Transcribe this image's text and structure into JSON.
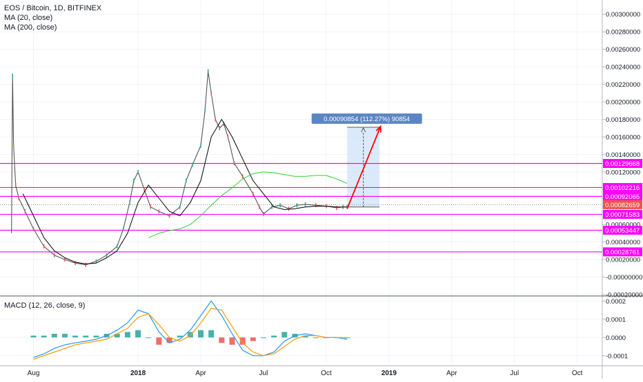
{
  "chart_data": [
    {
      "type": "line",
      "title": "EOS / Bitcoin, 1D, BITFINEX",
      "legend_entries": [
        "MA (20, close)",
        "MA (200, close)"
      ],
      "x_tick_labels": [
        "Aug",
        "2018",
        "Apr",
        "Jul",
        "Oct",
        "2019",
        "Apr",
        "Jul",
        "Oct"
      ],
      "x_ticks": [
        1.0,
        6.0,
        9.0,
        12.0,
        15.0,
        18.0,
        21.0,
        24.0,
        27.0
      ],
      "xlim": [
        -0.6,
        28.2
      ],
      "ylim": [
        -0.0002,
        0.0031
      ],
      "y_ticks": [
        -0.0002,
        0,
        0.0002,
        0.0004,
        0.0006,
        0.0008,
        0.001,
        0.0012,
        0.0014,
        0.0016,
        0.0018,
        0.002,
        0.0022,
        0.0024,
        0.0026,
        0.0028,
        0.003
      ],
      "y_tick_labels": [
        "-0.00020000",
        "-0.00000000",
        "0.00020000",
        "0.00040000",
        "0.00060000",
        "0.00080000",
        "0.00100000",
        "0.00120000",
        "0.00140000",
        "0.00160000",
        "0.00180000",
        "0.00200000",
        "0.00220000",
        "0.00240000",
        "0.00260000",
        "0.00280000",
        "0.00300000"
      ],
      "colors": {
        "up": "#26a69a",
        "down": "#ef5350",
        "ma20": "#000000",
        "ma200": "#32cd32",
        "level": "#ff00ff",
        "arrow": "#ff0000",
        "measure_fill": "#cfe3f8",
        "measure_label": "#5b86c4"
      },
      "series": [
        {
          "name": "EOS / Bitcoin",
          "style": "price",
          "x": [
            -0.05,
            0.0,
            0.05,
            0.15,
            0.3,
            0.6,
            1.0,
            1.5,
            2.0,
            2.5,
            3.0,
            3.5,
            4.0,
            4.5,
            5.0,
            5.3,
            5.6,
            5.8,
            6.0,
            6.3,
            6.6,
            7.0,
            7.5,
            8.0,
            8.3,
            8.6,
            9.0,
            9.2,
            9.35,
            9.5,
            9.7,
            9.9,
            10.1,
            10.3,
            10.6,
            11.0,
            11.5,
            11.8,
            12.0,
            12.4,
            12.8,
            13.2,
            13.6,
            14.0,
            14.5,
            15.0,
            15.5,
            15.8,
            16.0
          ],
          "y": [
            0.0005,
            0.0023,
            0.0015,
            0.00105,
            0.0009,
            0.00075,
            0.00055,
            0.00035,
            0.00025,
            0.0002,
            0.00016,
            0.00014,
            0.00018,
            0.00025,
            0.00035,
            0.00055,
            0.00085,
            0.0011,
            0.0012,
            0.001,
            0.0008,
            0.00075,
            0.0007,
            0.0008,
            0.0011,
            0.00128,
            0.0015,
            0.0019,
            0.00235,
            0.0021,
            0.0018,
            0.0017,
            0.00175,
            0.0016,
            0.0013,
            0.00115,
            0.00095,
            0.0008,
            0.00072,
            0.0008,
            0.00082,
            0.00078,
            0.00082,
            0.00083,
            0.00082,
            0.00081,
            0.00079,
            0.0008,
            0.0008
          ]
        },
        {
          "name": "MA (20, close)",
          "style": "ma20",
          "x": [
            0.5,
            1.0,
            1.5,
            2.0,
            2.5,
            3.0,
            3.5,
            4.0,
            4.5,
            5.0,
            5.5,
            6.0,
            6.5,
            7.0,
            7.5,
            8.0,
            8.5,
            9.0,
            9.5,
            10.0,
            10.5,
            11.0,
            11.5,
            12.0,
            12.5,
            13.0,
            13.5,
            14.0,
            14.5,
            15.0,
            15.5,
            16.0
          ],
          "y": [
            0.00095,
            0.0007,
            0.00045,
            0.0003,
            0.00022,
            0.00017,
            0.00015,
            0.00016,
            0.00022,
            0.0003,
            0.0005,
            0.00085,
            0.00105,
            0.0009,
            0.00075,
            0.0007,
            0.00085,
            0.0011,
            0.0016,
            0.0018,
            0.0016,
            0.00135,
            0.0011,
            0.00095,
            0.0008,
            0.00077,
            0.00078,
            0.0008,
            0.00081,
            0.00081,
            0.0008,
            0.0008
          ]
        },
        {
          "name": "MA (200, close)",
          "style": "ma200",
          "x": [
            6.5,
            7.0,
            7.5,
            8.0,
            8.5,
            9.0,
            9.5,
            10.0,
            10.5,
            11.0,
            11.5,
            12.0,
            12.5,
            13.0,
            13.5,
            14.0,
            14.5,
            15.0,
            15.5,
            16.0
          ],
          "y": [
            0.00045,
            0.0005,
            0.00053,
            0.00055,
            0.0006,
            0.0007,
            0.00082,
            0.00093,
            0.00102,
            0.00112,
            0.00118,
            0.0012,
            0.00119,
            0.00117,
            0.00115,
            0.00115,
            0.00116,
            0.00116,
            0.00112,
            0.00107
          ]
        }
      ],
      "horizontal_levels": [
        {
          "value": 0.00129668,
          "label": "0.00129668"
        },
        {
          "value": 0.00102216,
          "label": "0.00102216"
        },
        {
          "value": 0.00092065,
          "label": "0.00092065"
        },
        {
          "value": 0.00071583,
          "label": "0.00071583"
        },
        {
          "value": 0.00053447,
          "label": "0.00053447"
        },
        {
          "value": 0.00028761,
          "label": "0.00028761"
        }
      ],
      "last_price": {
        "value": 0.00082659,
        "label": "0.00082659"
      },
      "measure": {
        "x_start": 16.0,
        "x_end": 17.55,
        "y_start": 0.0008,
        "y_end": 0.00171,
        "label": "0.00090854 (112.27%) 90854"
      },
      "arrow": {
        "x1": 16.0,
        "y1": 0.00078,
        "x2": 17.6,
        "y2": 0.00172
      }
    },
    {
      "type": "bar",
      "title": "MACD (12, 26, close, 9)",
      "xlim": [
        -0.6,
        28.2
      ],
      "ylim": [
        -0.00015,
        0.00022
      ],
      "y_ticks": [
        -0.0001,
        0,
        0.0001,
        0.0002
      ],
      "y_tick_labels": [
        "-0.0001",
        "0.0000",
        "0.0001",
        "0.0002"
      ],
      "colors": {
        "macd": "#2196f3",
        "signal": "#ff9800",
        "hist_up": "#26a69a",
        "hist_down": "#ef5350"
      },
      "series": [
        {
          "name": "MACD",
          "style": "macd",
          "x": [
            1.0,
            1.5,
            2.0,
            2.5,
            3.0,
            3.5,
            4.0,
            4.5,
            5.0,
            5.5,
            6.0,
            6.5,
            7.0,
            7.5,
            8.0,
            8.5,
            9.0,
            9.5,
            10.0,
            10.5,
            11.0,
            11.5,
            12.0,
            12.5,
            13.0,
            13.5,
            14.0,
            14.5,
            15.0,
            15.5,
            16.0
          ],
          "y": [
            -0.00011,
            -9e-05,
            -6e-05,
            -4e-05,
            -3e-05,
            -2e-05,
            -1e-05,
            1e-05,
            4e-05,
            8e-05,
            0.00015,
            0.00013,
            3e-05,
            -3e-05,
            -1e-05,
            4e-05,
            0.00012,
            0.0002,
            0.00012,
            2e-05,
            -7e-05,
            -0.0001,
            -0.0001,
            -8e-05,
            -2e-05,
            1e-05,
            2e-05,
            1e-05,
            0.0,
            0.0,
            -1e-05
          ]
        },
        {
          "name": "Signal",
          "style": "signal",
          "x": [
            1.0,
            1.5,
            2.0,
            2.5,
            3.0,
            3.5,
            4.0,
            4.5,
            5.0,
            5.5,
            6.0,
            6.5,
            7.0,
            7.5,
            8.0,
            8.5,
            9.0,
            9.5,
            10.0,
            10.5,
            11.0,
            11.5,
            12.0,
            12.5,
            13.0,
            13.5,
            14.0,
            14.5,
            15.0,
            15.5,
            16.0
          ],
          "y": [
            -0.00012,
            -0.0001,
            -8e-05,
            -6e-05,
            -4e-05,
            -3e-05,
            -2e-05,
            -1e-05,
            2e-05,
            5e-05,
            0.00011,
            0.00013,
            7e-05,
            0.0,
            -2e-05,
            1e-05,
            8e-05,
            0.00016,
            0.00015,
            6e-05,
            -3e-05,
            -8e-05,
            -0.0001,
            -9e-05,
            -5e-05,
            -1e-05,
            1e-05,
            1e-05,
            0.0,
            0.0,
            0.0
          ]
        }
      ],
      "histogram": {
        "x": [
          1.0,
          1.5,
          2.0,
          2.5,
          3.0,
          3.5,
          4.0,
          4.5,
          5.0,
          5.5,
          6.0,
          6.5,
          7.0,
          7.5,
          8.0,
          8.5,
          9.0,
          9.5,
          10.0,
          10.5,
          11.0,
          11.5,
          12.0,
          12.5,
          13.0,
          13.5,
          14.0,
          14.5,
          15.0,
          15.5,
          16.0
        ],
        "values": [
          1e-05,
          1e-05,
          2e-05,
          2e-05,
          1e-05,
          1e-05,
          1e-05,
          2e-05,
          2e-05,
          3e-05,
          4e-05,
          0.0,
          -4e-05,
          -3e-05,
          1e-05,
          3e-05,
          4e-05,
          4e-05,
          -3e-05,
          -4e-05,
          -4e-05,
          -2e-05,
          0.0,
          1e-05,
          3e-05,
          2e-05,
          1e-05,
          0.0,
          0.0,
          0.0,
          0.0
        ]
      }
    }
  ]
}
